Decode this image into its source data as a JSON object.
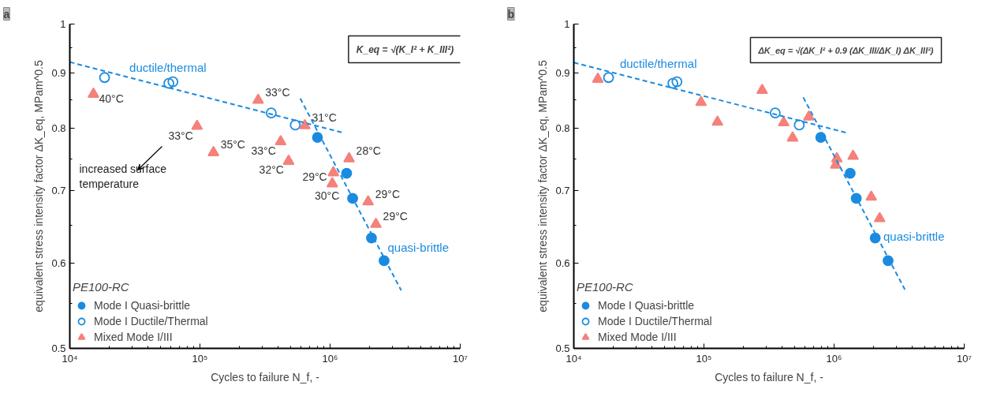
{
  "chart_data": [
    {
      "type": "scatter",
      "title": "a",
      "xlabel": "Cycles to failure N_f, -",
      "ylabel": "equivalent stress intensity factor ΔK_eq, MPam^0.5",
      "log": "xy",
      "grid": false,
      "xlim": [
        10000,
        10000000
      ],
      "ylim": [
        0.5,
        1
      ],
      "xticks": [
        {
          "value": 10000,
          "label": "10⁴"
        },
        {
          "value": 100000,
          "label": "10⁵"
        },
        {
          "value": 1000000,
          "label": "10⁶"
        },
        {
          "value": 10000000,
          "label": "10⁷"
        }
      ],
      "yticks": [
        0.5,
        0.6,
        0.7,
        0.8,
        0.9,
        1
      ],
      "legend": "bottom left",
      "legend_title": "PE100-RC",
      "series": [
        {
          "name": "Mode I Quasi-brittle",
          "color": "#1b8be0",
          "marker": "circle",
          "x": [
            800000,
            1340000,
            1490000,
            2080000,
            2600000
          ],
          "values": [
            0.785,
            0.727,
            0.689,
            0.633,
            0.603
          ]
        },
        {
          "name": "Mode I Ductile/Thermal",
          "color": "#1b8be0",
          "marker": "circle_open",
          "x": [
            18500,
            57700,
            62000,
            353000,
            540000
          ],
          "values": [
            0.892,
            0.881,
            0.884,
            0.827,
            0.806
          ]
        },
        {
          "name": "Mixed Mode I/III",
          "color": "#f4817a",
          "marker": "triangle",
          "x": [
            15200,
            95000,
            127000,
            280000,
            417000,
            480000,
            640000,
            1400000,
            1060000,
            1040000,
            1960000,
            2250000
          ],
          "values": [
            0.861,
            0.804,
            0.76,
            0.85,
            0.778,
            0.746,
            0.805,
            0.75,
            0.728,
            0.711,
            0.684,
            0.652
          ]
        },
        {
          "type": "line",
          "color": "#1b8be0",
          "line_style": "dashed",
          "marker": "none",
          "x": [
            10000,
            1240000
          ],
          "values": [
            0.922,
            0.793
          ]
        },
        {
          "type": "line",
          "color": "#1b8be0",
          "line_style": "dashed",
          "marker": "none",
          "x": [
            590000,
            3520000
          ],
          "values": [
            0.853,
            0.566
          ]
        }
      ],
      "annotations": [
        "K_eq = √(K_I² + K_III²)",
        "increased surface\ntemperature",
        {
          "text": "ductile/thermal",
          "x": 28700,
          "y": 0.892
        },
        {
          "text": "quasi-brittle",
          "x": 2770000,
          "y": 0.598
        },
        {
          "text": "40°C",
          "x": 15200,
          "y": 0.861
        },
        {
          "text": "33°C",
          "x": 95000,
          "y": 0.804
        },
        {
          "text": "35°C",
          "x": 127000,
          "y": 0.76
        },
        {
          "text": "33°C",
          "x": 417000,
          "y": 0.778
        },
        {
          "text": "32°C",
          "x": 480000,
          "y": 0.746
        },
        {
          "text": "33°C",
          "x": 280000,
          "y": 0.85
        },
        {
          "text": "31°C",
          "x": 640000,
          "y": 0.805
        },
        {
          "text": "28°C",
          "x": 1400000,
          "y": 0.75
        },
        {
          "text": "29°C",
          "x": 1060000,
          "y": 0.728
        },
        {
          "text": "30°C",
          "x": 1040000,
          "y": 0.711
        },
        {
          "text": "29°C",
          "x": 1960000,
          "y": 0.684
        },
        {
          "text": "29°C",
          "x": 2250000,
          "y": 0.652
        }
      ]
    },
    {
      "type": "scatter",
      "title": "b",
      "xlabel": "Cycles to failure N_f, -",
      "ylabel": "equivalent stress intensity factor ΔK_eq, MPam^0.5",
      "log": "xy",
      "grid": false,
      "xlim": [
        10000,
        10000000
      ],
      "ylim": [
        0.5,
        1
      ],
      "xticks": [
        {
          "value": 10000,
          "label": "10⁴"
        },
        {
          "value": 100000,
          "label": "10⁵"
        },
        {
          "value": 1000000,
          "label": "10⁶"
        },
        {
          "value": 10000000,
          "label": "10⁷"
        }
      ],
      "yticks": [
        0.5,
        0.6,
        0.7,
        0.8,
        0.9,
        1
      ],
      "legend": "bottom left",
      "legend_title": "PE100-RC",
      "series": [
        {
          "name": "Mode I Quasi-brittle",
          "color": "#1b8be0",
          "marker": "circle",
          "x": [
            790000,
            1330000,
            1480000,
            2070000,
            2600000
          ],
          "values": [
            0.785,
            0.727,
            0.689,
            0.633,
            0.603
          ]
        },
        {
          "name": "Mode I Ductile/Thermal",
          "color": "#1b8be0",
          "marker": "circle_open",
          "x": [
            18500,
            57700,
            62000,
            353000,
            540000
          ],
          "values": [
            0.892,
            0.881,
            0.884,
            0.827,
            0.806
          ]
        },
        {
          "name": "Mixed Mode I/III",
          "color": "#f4817a",
          "marker": "triangle",
          "x": [
            15300,
            95000,
            127000,
            280000,
            410000,
            480000,
            640000,
            1050000,
            1030000,
            1400000,
            1930000,
            2240000
          ],
          "values": [
            0.889,
            0.846,
            0.811,
            0.868,
            0.81,
            0.784,
            0.82,
            0.75,
            0.74,
            0.754,
            0.691,
            0.66
          ]
        },
        {
          "type": "line",
          "color": "#1b8be0",
          "line_style": "dashed",
          "marker": "none",
          "x": [
            10000,
            1230000
          ],
          "values": [
            0.921,
            0.793
          ]
        },
        {
          "type": "line",
          "color": "#1b8be0",
          "line_style": "dashed",
          "marker": "none",
          "x": [
            580000,
            3500000
          ],
          "values": [
            0.855,
            0.567
          ]
        }
      ],
      "annotations": [
        "ΔK_eq = √(ΔK_I² + 0.9 (ΔK_III/ΔK_I) ΔK_III²)",
        {
          "text": "ductile/thermal",
          "x": 22600,
          "y": 0.898
        },
        {
          "text": "quasi-brittle",
          "x": 2110000,
          "y": 0.637
        }
      ]
    }
  ]
}
